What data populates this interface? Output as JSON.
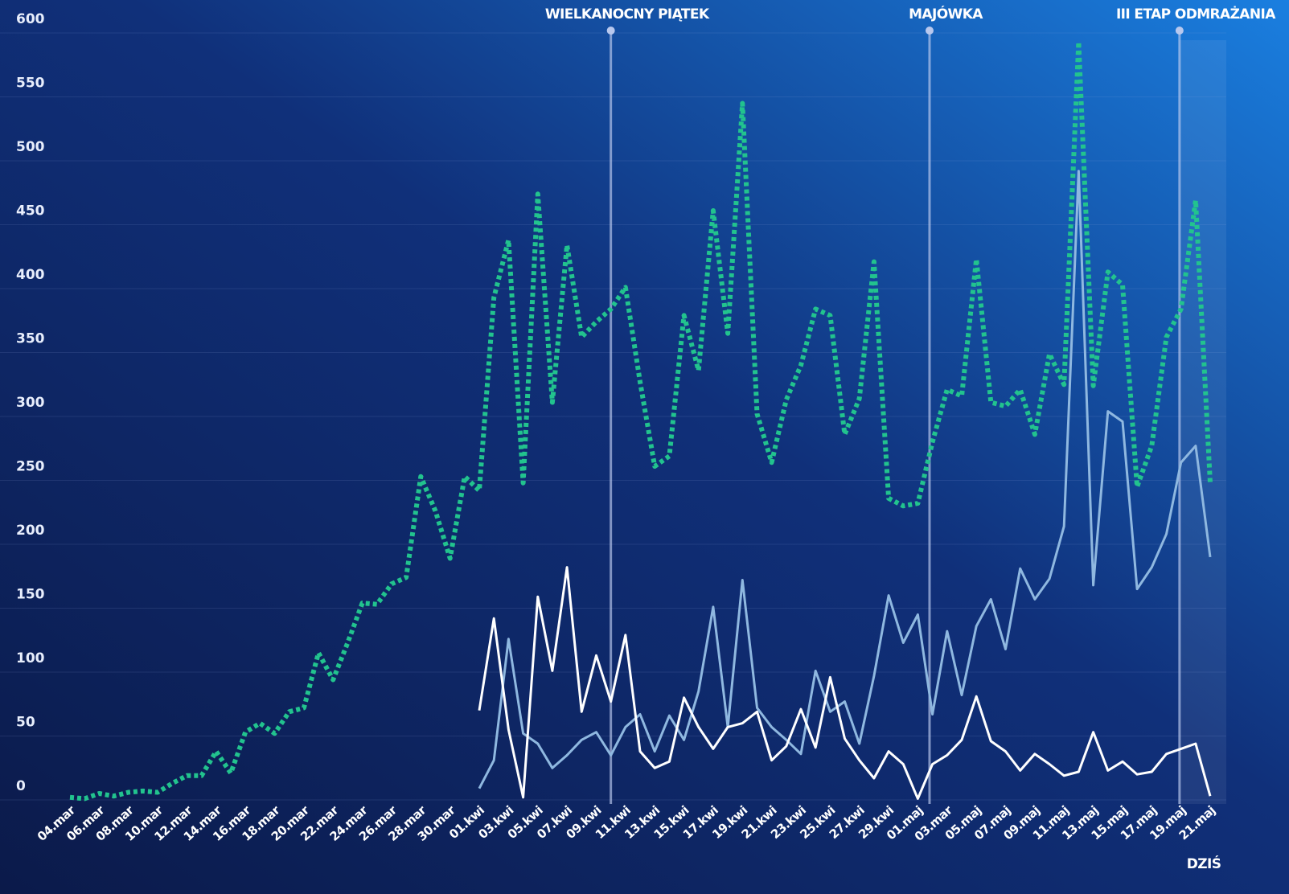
{
  "chart_data": {
    "type": "line",
    "categories": [
      "04.mar",
      null,
      "06.mar",
      null,
      "08.mar",
      null,
      "10.mar",
      null,
      "12.mar",
      null,
      "14.mar",
      null,
      "16.mar",
      null,
      "18.mar",
      null,
      "20.mar",
      null,
      "22.mar",
      null,
      "24.mar",
      null,
      "26.mar",
      null,
      "28.mar",
      null,
      "30.mar",
      null,
      "01.kwi",
      null,
      "03.kwi",
      null,
      "05.kwi",
      null,
      "07.kwi",
      null,
      "09.kwi",
      null,
      "11.kwi",
      null,
      "13.kwi",
      null,
      "15.kwi",
      null,
      "17.kwi",
      null,
      "19.kwi",
      null,
      "21.kwi",
      null,
      "23.kwi",
      null,
      "25.kwi",
      null,
      "27.kwi",
      null,
      "29.kwi",
      null,
      "01.maj",
      null,
      "03.mar",
      null,
      "05.maj",
      null,
      "07.maj",
      null,
      "09.maj",
      null,
      "11.maj",
      null,
      "13.maj",
      null,
      "15.maj",
      null,
      "17.maj",
      null,
      "19.maj",
      null,
      "21.maj"
    ],
    "series": [
      {
        "color": "#22c38e",
        "dashed": true,
        "values": [
          2,
          1,
          5,
          3,
          6,
          7,
          6,
          13,
          19,
          19,
          38,
          21,
          53,
          60,
          52,
          69,
          72,
          115,
          94,
          123,
          154,
          153,
          169,
          174,
          253,
          226,
          189,
          253,
          242,
          393,
          438,
          248,
          474,
          311,
          434,
          362,
          374,
          384,
          401,
          327,
          261,
          269,
          379,
          336,
          461,
          365,
          545,
          302,
          264,
          313,
          340,
          384,
          379,
          286,
          314,
          421,
          236,
          230,
          232,
          280,
          321,
          316,
          423,
          311,
          308,
          321,
          286,
          349,
          325,
          593,
          324,
          413,
          403,
          245,
          277,
          362,
          384,
          469,
          248
        ]
      },
      {
        "color": "#8fb8e0",
        "dashed": false,
        "values": [
          null,
          null,
          null,
          null,
          null,
          null,
          null,
          null,
          null,
          null,
          null,
          null,
          null,
          null,
          null,
          null,
          null,
          null,
          null,
          null,
          null,
          null,
          null,
          null,
          null,
          null,
          null,
          null,
          9,
          31,
          126,
          52,
          44,
          25,
          35,
          47,
          53,
          35,
          57,
          67,
          38,
          66,
          47,
          85,
          151,
          57,
          172,
          72,
          57,
          47,
          36,
          101,
          69,
          77,
          44,
          97,
          160,
          123,
          145,
          67,
          132,
          82,
          136,
          157,
          118,
          181,
          157,
          173,
          214,
          492,
          168,
          304,
          296,
          165,
          182,
          208,
          264,
          277,
          190
        ]
      },
      {
        "color": "#ffffff",
        "dashed": false,
        "values": [
          null,
          null,
          null,
          null,
          null,
          null,
          null,
          null,
          null,
          null,
          null,
          null,
          null,
          null,
          null,
          null,
          null,
          null,
          null,
          null,
          null,
          null,
          null,
          null,
          null,
          null,
          null,
          null,
          70,
          142,
          55,
          2,
          159,
          101,
          182,
          69,
          113,
          77,
          129,
          38,
          25,
          30,
          80,
          57,
          40,
          57,
          60,
          69,
          31,
          42,
          71,
          41,
          96,
          48,
          31,
          17,
          38,
          28,
          1,
          28,
          35,
          47,
          81,
          46,
          38,
          23,
          36,
          28,
          19,
          22,
          53,
          23,
          30,
          20,
          22,
          36,
          40,
          44,
          3
        ]
      }
    ],
    "ylim": [
      0,
      600
    ],
    "yticks": [
      0,
      50,
      100,
      150,
      200,
      250,
      300,
      350,
      400,
      450,
      500,
      550,
      600
    ],
    "grid": true,
    "annotations": [
      {
        "text": "WIELKANOCNY PIĄTEK",
        "x": 37
      },
      {
        "text": "MAJÓWKA",
        "x": 58.8
      },
      {
        "text": "III ETAP ODMRAŻANIA",
        "x": 75.9
      }
    ],
    "today_label": "DZIŚ"
  }
}
